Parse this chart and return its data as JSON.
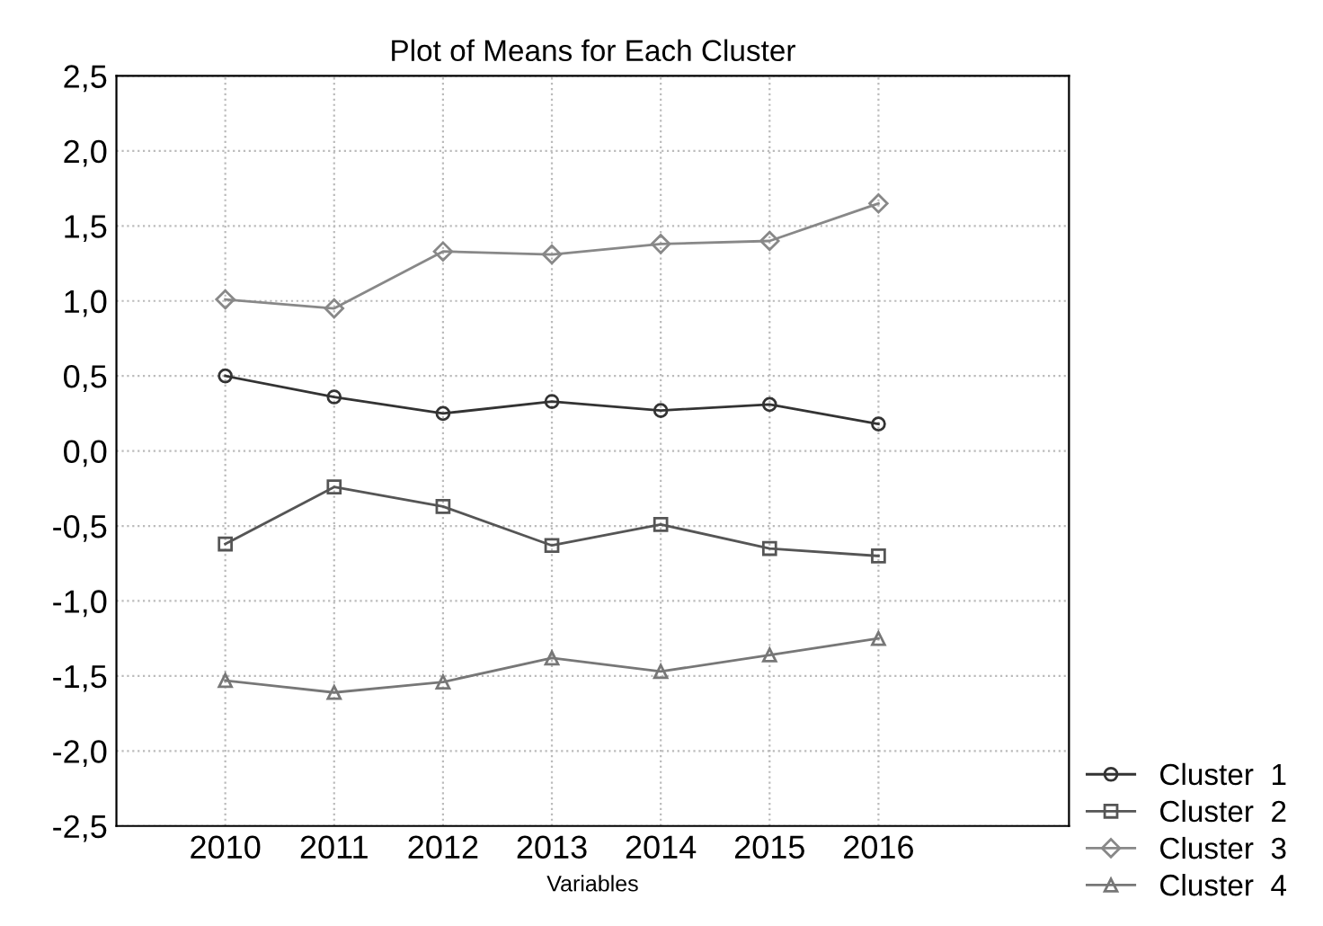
{
  "chart_data": {
    "type": "line",
    "title": "Plot of Means for Each Cluster",
    "xlabel": "Variables",
    "categories": [
      "2010",
      "2011",
      "2012",
      "2013",
      "2014",
      "2015",
      "2016"
    ],
    "series": [
      {
        "name": "Cluster  1",
        "color": "#333333",
        "marker": "circle",
        "values": [
          0.5,
          0.36,
          0.25,
          0.33,
          0.27,
          0.31,
          0.18
        ]
      },
      {
        "name": "Cluster  2",
        "color": "#555555",
        "marker": "square",
        "values": [
          -0.62,
          -0.24,
          -0.37,
          -0.63,
          -0.49,
          -0.65,
          -0.7
        ]
      },
      {
        "name": "Cluster  3",
        "color": "#888888",
        "marker": "diamond",
        "values": [
          1.01,
          0.95,
          1.33,
          1.31,
          1.38,
          1.4,
          1.65
        ]
      },
      {
        "name": "Cluster  4",
        "color": "#777777",
        "marker": "triangle",
        "values": [
          -1.53,
          -1.61,
          -1.54,
          -1.38,
          -1.47,
          -1.36,
          -1.25
        ]
      }
    ],
    "ylim": [
      -2.5,
      2.5
    ],
    "yticks": [
      {
        "value": -2.5,
        "label": "-2,5"
      },
      {
        "value": -2.0,
        "label": "-2,0"
      },
      {
        "value": -1.5,
        "label": "-1,5"
      },
      {
        "value": -1.0,
        "label": "-1,0"
      },
      {
        "value": -0.5,
        "label": "-0,5"
      },
      {
        "value": 0.0,
        "label": "0,0"
      },
      {
        "value": 0.5,
        "label": "0,5"
      },
      {
        "value": 1.0,
        "label": "1,0"
      },
      {
        "value": 1.5,
        "label": "1,5"
      },
      {
        "value": 2.0,
        "label": "2,0"
      },
      {
        "value": 2.5,
        "label": "2,5"
      }
    ],
    "grid": true,
    "legend": "bottom right",
    "line_style": "solid"
  }
}
